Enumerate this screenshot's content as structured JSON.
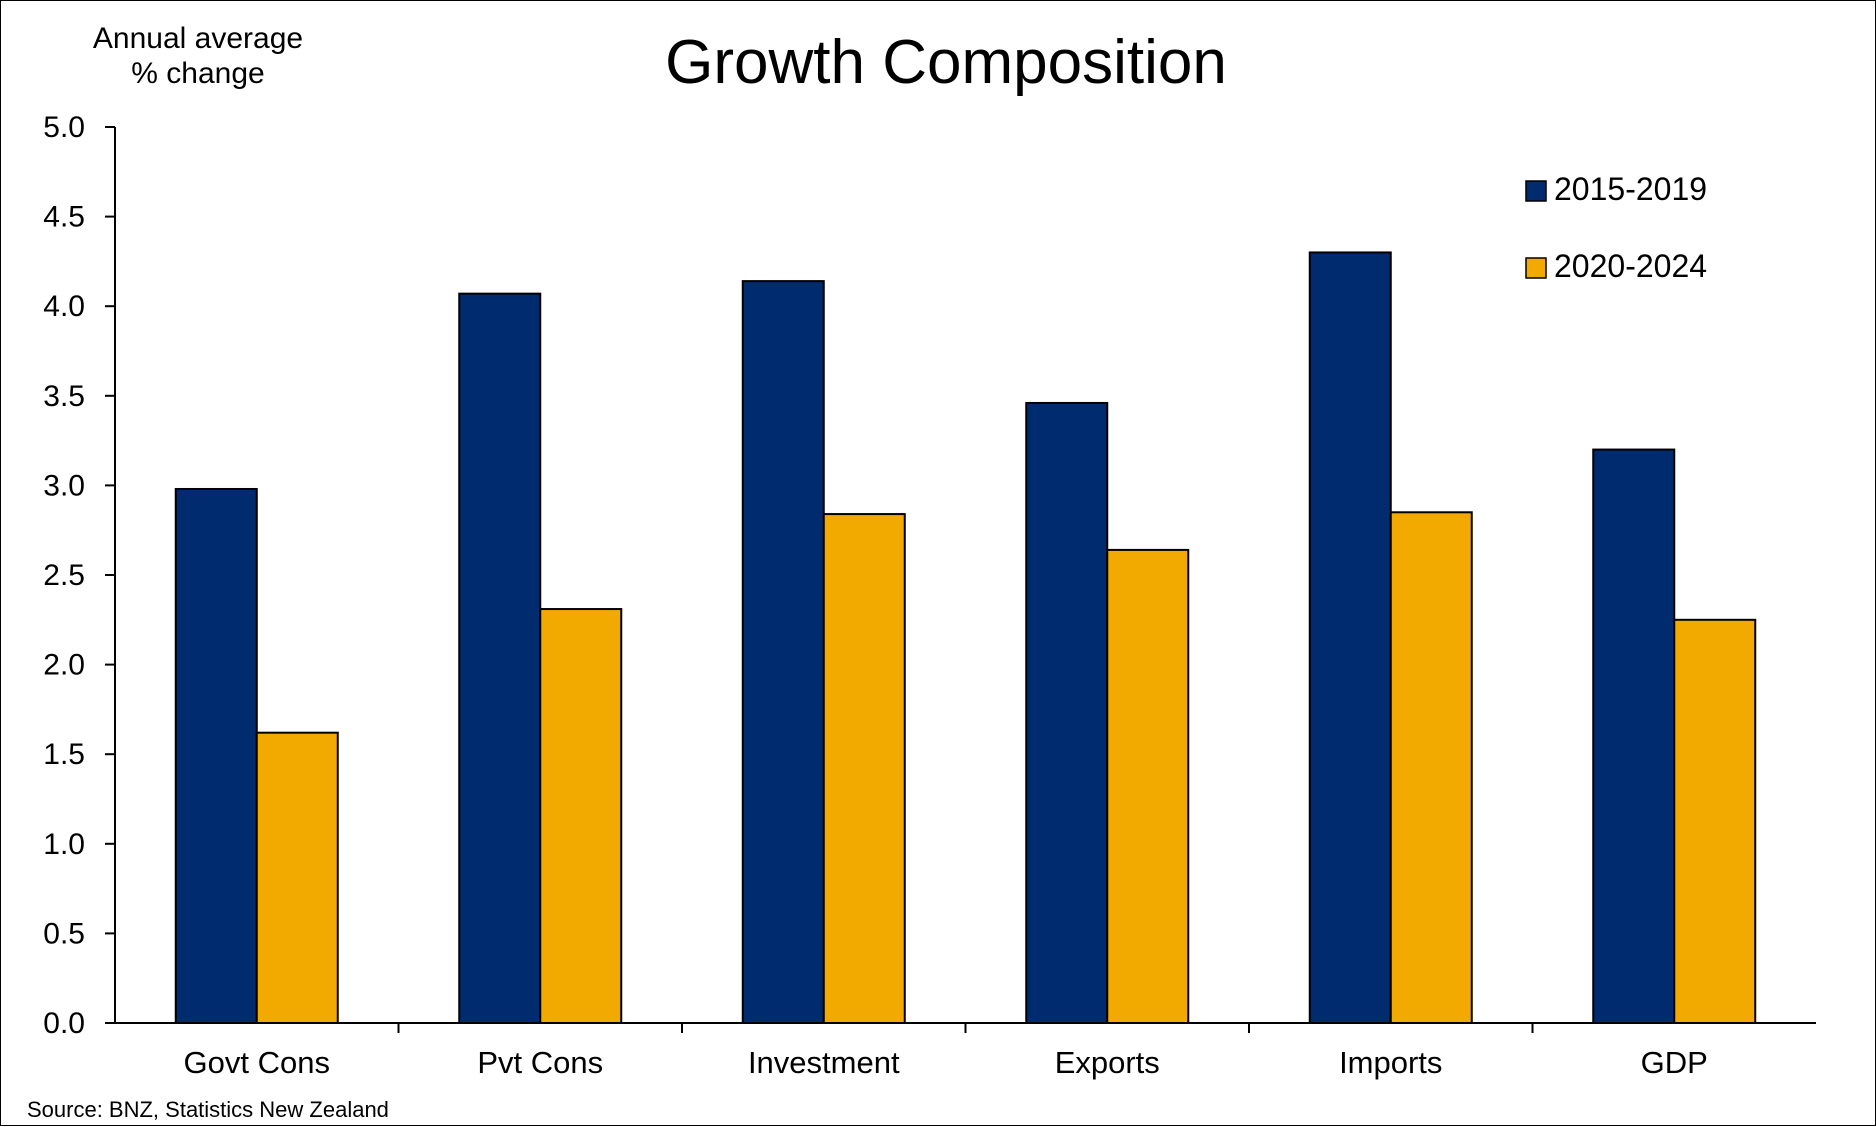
{
  "chart_data": {
    "type": "bar",
    "title": "Growth Composition",
    "ylabel_lines": [
      "Annual average",
      "% change"
    ],
    "categories": [
      "Govt Cons",
      "Pvt Cons",
      "Investment",
      "Exports",
      "Imports",
      "GDP"
    ],
    "series": [
      {
        "name": "2015-2019",
        "color": "#002B6E",
        "values": [
          2.98,
          4.07,
          4.14,
          3.46,
          4.3,
          3.2
        ]
      },
      {
        "name": "2020-2024",
        "color": "#F2AA00",
        "values": [
          1.62,
          2.31,
          2.84,
          2.64,
          2.85,
          2.25
        ]
      }
    ],
    "ylim": [
      0,
      5
    ],
    "yticks": [
      "0.0",
      "0.5",
      "1.0",
      "1.5",
      "2.0",
      "2.5",
      "3.0",
      "3.5",
      "4.0",
      "4.5",
      "5.0"
    ],
    "grid": false,
    "legend_position": "top-right",
    "source": "Source:  BNZ,  Statistics New Zealand"
  }
}
